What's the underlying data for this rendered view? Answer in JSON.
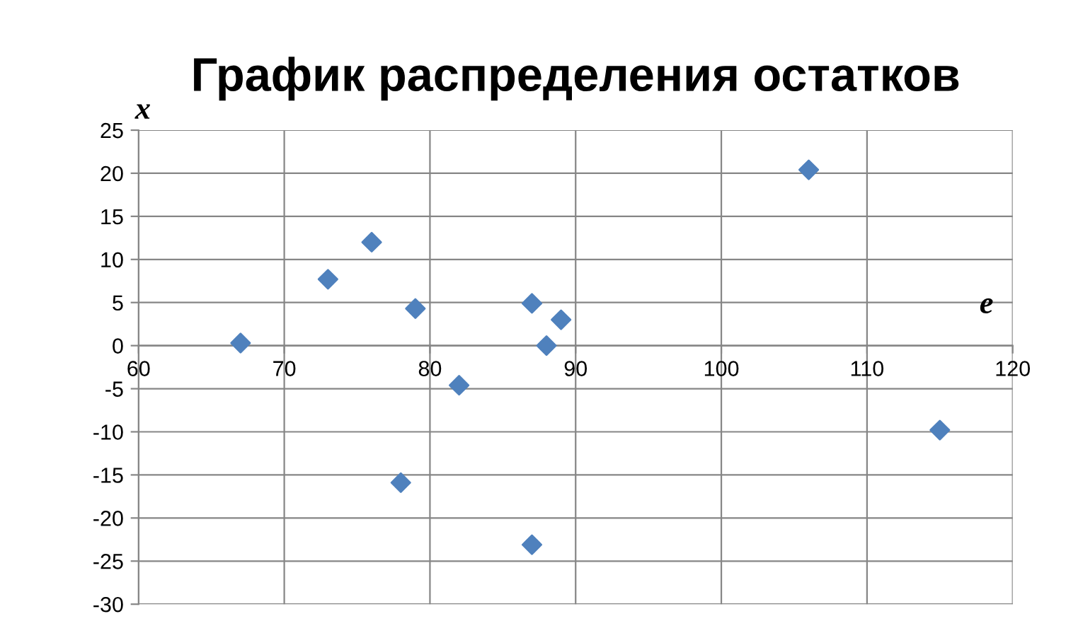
{
  "chart_data": {
    "type": "scatter",
    "title": "График распределения остатков",
    "xlabel": "e",
    "ylabel": "x",
    "series": [
      {
        "color": "#4f81bd",
        "x": [
          67,
          73,
          76,
          79,
          82,
          78,
          87,
          87,
          88,
          89,
          106,
          115
        ],
        "values": [
          0.3,
          7.7,
          12,
          4.3,
          -4.6,
          -15.9,
          4.9,
          -23.1,
          0,
          3,
          20.4,
          -9.8
        ]
      }
    ],
    "xlim": [
      60,
      120
    ],
    "xticks": [
      60,
      70,
      80,
      90,
      100,
      110,
      120
    ],
    "ylim": [
      -30,
      25
    ],
    "yticks": [
      -30,
      -25,
      -20,
      -15,
      -10,
      -5,
      0,
      5,
      10,
      15,
      20,
      25
    ],
    "grid": true,
    "marker": "diamond"
  }
}
